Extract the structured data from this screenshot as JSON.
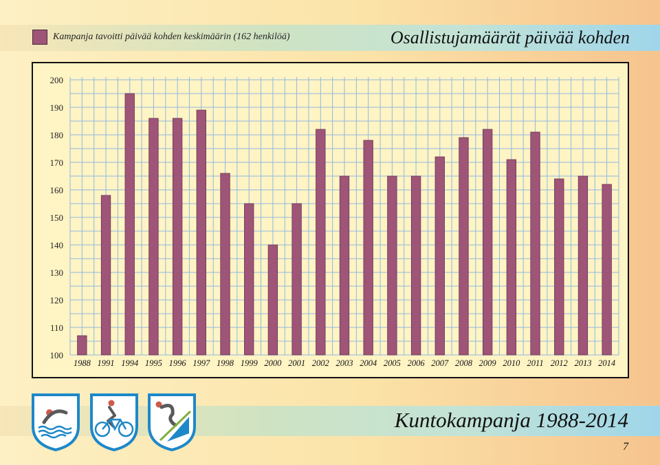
{
  "header": {
    "legend_label": "Kampanja tavoitti päivää kohden keskimäärin (162 henkilöä)",
    "title": "Osallistujamäärät päivää kohden"
  },
  "footer": {
    "title": "Kuntokampanja 1988-2014",
    "page_number": "7"
  },
  "icons": [
    "swimming-icon",
    "cycling-icon",
    "skiing-icon"
  ],
  "colors": {
    "bar": "#9e5577",
    "grid": "#8fb8e0",
    "panel": "#fff4c4"
  },
  "chart_data": {
    "type": "bar",
    "title": "",
    "xlabel": "",
    "ylabel": "",
    "ylim": [
      100,
      200
    ],
    "yticks": [
      "100",
      "110",
      "120",
      "130",
      "140",
      "150",
      "160",
      "170",
      "180",
      "190",
      "200"
    ],
    "grid": true,
    "categories": [
      "1988",
      "1991",
      "1994",
      "1995",
      "1996",
      "1997",
      "1998",
      "1999",
      "2000",
      "2001",
      "2002",
      "2003",
      "2004",
      "2005",
      "2006",
      "2007",
      "2008",
      "2009",
      "2010",
      "2011",
      "2012",
      "2013",
      "2014"
    ],
    "values": [
      107,
      158,
      195,
      186,
      186,
      189,
      166,
      155,
      140,
      155,
      182,
      165,
      178,
      165,
      165,
      172,
      179,
      182,
      171,
      181,
      164,
      165,
      162
    ]
  }
}
